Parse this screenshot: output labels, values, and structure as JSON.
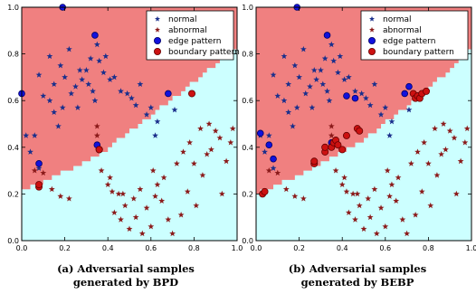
{
  "colors": {
    "region_normal": "#f08080",
    "region_abnormal": "#ccffff",
    "normal": "#1a2f8c",
    "abnormal": "#8b1a1a",
    "edge": "#1111dd",
    "boundary": "#cc1111",
    "boundary_edge": "#660000"
  },
  "chart_data": [
    {
      "type": "scatter",
      "title": "",
      "caption": [
        "(a) Adversarial samples",
        "generated by BPD"
      ],
      "xlim": [
        0,
        1
      ],
      "ylim": [
        0,
        1
      ],
      "xticks": [
        "0.0",
        "0.2",
        "0.4",
        "0.6",
        "0.8",
        "1.0"
      ],
      "yticks": [
        "0.0",
        "0.2",
        "0.4",
        "0.6",
        "0.8",
        "1.0"
      ],
      "grid": false,
      "legend": {
        "placement": "top-right",
        "entries": [
          "normal",
          "abnormal",
          "edge pattern",
          "boundary pattern"
        ]
      },
      "region_boundary": [
        [
          0,
          0.21
        ],
        [
          0.35,
          0.36
        ],
        [
          0.69,
          0.6
        ],
        [
          1.0,
          0.83
        ]
      ],
      "series": [
        {
          "name": "normal",
          "marker": "star",
          "points": [
            [
              0.02,
              0.45
            ],
            [
              0.04,
              0.38
            ],
            [
              0.06,
              0.45
            ],
            [
              0.08,
              0.31
            ],
            [
              0.08,
              0.71
            ],
            [
              0.1,
              0.62
            ],
            [
              0.13,
              0.6
            ],
            [
              0.13,
              0.79
            ],
            [
              0.15,
              0.55
            ],
            [
              0.15,
              0.67
            ],
            [
              0.17,
              0.49
            ],
            [
              0.18,
              0.75
            ],
            [
              0.19,
              0.57
            ],
            [
              0.2,
              0.7
            ],
            [
              0.22,
              0.82
            ],
            [
              0.23,
              0.63
            ],
            [
              0.25,
              0.66
            ],
            [
              0.26,
              0.57
            ],
            [
              0.27,
              0.73
            ],
            [
              0.28,
              0.69
            ],
            [
              0.3,
              0.73
            ],
            [
              0.31,
              0.67
            ],
            [
              0.32,
              0.78
            ],
            [
              0.33,
              0.64
            ],
            [
              0.34,
              0.6
            ],
            [
              0.35,
              0.84
            ],
            [
              0.36,
              0.77
            ],
            [
              0.38,
              0.72
            ],
            [
              0.39,
              0.79
            ],
            [
              0.41,
              0.69
            ],
            [
              0.43,
              0.7
            ],
            [
              0.46,
              0.64
            ],
            [
              0.49,
              0.63
            ],
            [
              0.51,
              0.61
            ],
            [
              0.53,
              0.58
            ],
            [
              0.55,
              0.67
            ],
            [
              0.58,
              0.54
            ],
            [
              0.6,
              0.57
            ],
            [
              0.62,
              0.45
            ],
            [
              0.63,
              0.51
            ],
            [
              0.71,
              0.56
            ]
          ]
        },
        {
          "name": "abnormal",
          "marker": "star",
          "points": [
            [
              0.06,
              0.3
            ],
            [
              0.1,
              0.29
            ],
            [
              0.14,
              0.22
            ],
            [
              0.18,
              0.19
            ],
            [
              0.22,
              0.18
            ],
            [
              0.35,
              0.49
            ],
            [
              0.35,
              0.45
            ],
            [
              0.37,
              0.3
            ],
            [
              0.4,
              0.24
            ],
            [
              0.41,
              0.27
            ],
            [
              0.42,
              0.21
            ],
            [
              0.43,
              0.12
            ],
            [
              0.45,
              0.2
            ],
            [
              0.46,
              0.09
            ],
            [
              0.47,
              0.2
            ],
            [
              0.48,
              0.15
            ],
            [
              0.5,
              0.05
            ],
            [
              0.52,
              0.18
            ],
            [
              0.53,
              0.1
            ],
            [
              0.55,
              0.22
            ],
            [
              0.56,
              0.03
            ],
            [
              0.58,
              0.14
            ],
            [
              0.6,
              0.06
            ],
            [
              0.61,
              0.3
            ],
            [
              0.62,
              0.19
            ],
            [
              0.63,
              0.24
            ],
            [
              0.65,
              0.17
            ],
            [
              0.66,
              0.27
            ],
            [
              0.68,
              0.09
            ],
            [
              0.7,
              0.03
            ],
            [
              0.72,
              0.33
            ],
            [
              0.74,
              0.11
            ],
            [
              0.75,
              0.38
            ],
            [
              0.77,
              0.21
            ],
            [
              0.78,
              0.42
            ],
            [
              0.8,
              0.33
            ],
            [
              0.81,
              0.15
            ],
            [
              0.83,
              0.48
            ],
            [
              0.84,
              0.28
            ],
            [
              0.86,
              0.37
            ],
            [
              0.87,
              0.5
            ],
            [
              0.88,
              0.39
            ],
            [
              0.9,
              0.47
            ],
            [
              0.92,
              0.44
            ],
            [
              0.93,
              0.2
            ],
            [
              0.95,
              0.34
            ],
            [
              0.97,
              0.42
            ],
            [
              0.98,
              0.48
            ]
          ]
        },
        {
          "name": "edge pattern",
          "marker": "circle",
          "points": [
            [
              0.0,
              0.63
            ],
            [
              0.08,
              0.33
            ],
            [
              0.19,
              1.0
            ],
            [
              0.34,
              0.88
            ],
            [
              0.35,
              0.41
            ],
            [
              0.68,
              0.63
            ]
          ]
        },
        {
          "name": "boundary pattern",
          "marker": "circle",
          "points": [
            [
              0.08,
              0.23
            ],
            [
              0.08,
              0.24
            ],
            [
              0.36,
              0.39
            ],
            [
              0.36,
              0.39
            ],
            [
              0.79,
              0.63
            ]
          ]
        }
      ]
    },
    {
      "type": "scatter",
      "title": "",
      "caption": [
        "(b) Adversarial samples",
        "generated by BEBP"
      ],
      "xlim": [
        0,
        1
      ],
      "ylim": [
        0,
        1
      ],
      "xticks": [
        "0.0",
        "0.2",
        "0.4",
        "0.6",
        "0.8",
        "1.0"
      ],
      "yticks": [
        "0.0",
        "0.2",
        "0.4",
        "0.6",
        "0.8",
        "1.0"
      ],
      "grid": false,
      "legend": {
        "placement": "top-right",
        "entries": [
          "normal",
          "abnormal",
          "edge pattern",
          "boundary pattern"
        ]
      },
      "region_boundary": [
        [
          0,
          0.2
        ],
        [
          0.27,
          0.31
        ],
        [
          0.51,
          0.44
        ],
        [
          0.78,
          0.63
        ],
        [
          1.0,
          0.82
        ]
      ],
      "series": [
        {
          "name": "normal",
          "marker": "star",
          "points": [
            [
              0.02,
              0.45
            ],
            [
              0.04,
              0.38
            ],
            [
              0.06,
              0.45
            ],
            [
              0.08,
              0.31
            ],
            [
              0.08,
              0.71
            ],
            [
              0.1,
              0.62
            ],
            [
              0.13,
              0.6
            ],
            [
              0.13,
              0.79
            ],
            [
              0.15,
              0.55
            ],
            [
              0.15,
              0.67
            ],
            [
              0.17,
              0.49
            ],
            [
              0.18,
              0.75
            ],
            [
              0.19,
              0.57
            ],
            [
              0.2,
              0.7
            ],
            [
              0.22,
              0.82
            ],
            [
              0.23,
              0.63
            ],
            [
              0.25,
              0.66
            ],
            [
              0.26,
              0.57
            ],
            [
              0.27,
              0.73
            ],
            [
              0.28,
              0.69
            ],
            [
              0.3,
              0.73
            ],
            [
              0.31,
              0.67
            ],
            [
              0.32,
              0.78
            ],
            [
              0.33,
              0.64
            ],
            [
              0.34,
              0.6
            ],
            [
              0.35,
              0.84
            ],
            [
              0.36,
              0.77
            ],
            [
              0.38,
              0.72
            ],
            [
              0.39,
              0.79
            ],
            [
              0.41,
              0.69
            ],
            [
              0.43,
              0.7
            ],
            [
              0.46,
              0.64
            ],
            [
              0.49,
              0.63
            ],
            [
              0.51,
              0.61
            ],
            [
              0.53,
              0.58
            ],
            [
              0.55,
              0.67
            ],
            [
              0.58,
              0.54
            ],
            [
              0.6,
              0.57
            ],
            [
              0.62,
              0.45
            ],
            [
              0.63,
              0.51
            ],
            [
              0.71,
              0.56
            ]
          ]
        },
        {
          "name": "abnormal",
          "marker": "star",
          "points": [
            [
              0.06,
              0.3
            ],
            [
              0.1,
              0.29
            ],
            [
              0.14,
              0.22
            ],
            [
              0.18,
              0.19
            ],
            [
              0.22,
              0.18
            ],
            [
              0.35,
              0.49
            ],
            [
              0.35,
              0.45
            ],
            [
              0.37,
              0.3
            ],
            [
              0.4,
              0.24
            ],
            [
              0.41,
              0.27
            ],
            [
              0.42,
              0.21
            ],
            [
              0.43,
              0.12
            ],
            [
              0.45,
              0.2
            ],
            [
              0.46,
              0.09
            ],
            [
              0.47,
              0.2
            ],
            [
              0.48,
              0.15
            ],
            [
              0.5,
              0.05
            ],
            [
              0.52,
              0.18
            ],
            [
              0.53,
              0.1
            ],
            [
              0.55,
              0.22
            ],
            [
              0.56,
              0.03
            ],
            [
              0.58,
              0.14
            ],
            [
              0.6,
              0.06
            ],
            [
              0.61,
              0.3
            ],
            [
              0.62,
              0.19
            ],
            [
              0.63,
              0.24
            ],
            [
              0.65,
              0.17
            ],
            [
              0.66,
              0.27
            ],
            [
              0.68,
              0.09
            ],
            [
              0.7,
              0.03
            ],
            [
              0.72,
              0.33
            ],
            [
              0.74,
              0.11
            ],
            [
              0.75,
              0.38
            ],
            [
              0.77,
              0.21
            ],
            [
              0.78,
              0.42
            ],
            [
              0.8,
              0.33
            ],
            [
              0.81,
              0.15
            ],
            [
              0.83,
              0.48
            ],
            [
              0.84,
              0.28
            ],
            [
              0.86,
              0.37
            ],
            [
              0.87,
              0.5
            ],
            [
              0.88,
              0.39
            ],
            [
              0.9,
              0.47
            ],
            [
              0.92,
              0.44
            ],
            [
              0.93,
              0.2
            ],
            [
              0.95,
              0.34
            ],
            [
              0.97,
              0.42
            ],
            [
              0.98,
              0.48
            ]
          ]
        },
        {
          "name": "edge pattern",
          "marker": "circle",
          "points": [
            [
              0.02,
              0.46
            ],
            [
              0.06,
              0.41
            ],
            [
              0.08,
              0.35
            ],
            [
              0.19,
              1.0
            ],
            [
              0.33,
              0.88
            ],
            [
              0.35,
              0.42
            ],
            [
              0.42,
              0.62
            ],
            [
              0.46,
              0.61
            ],
            [
              0.69,
              0.63
            ],
            [
              0.71,
              0.66
            ]
          ]
        },
        {
          "name": "boundary pattern",
          "marker": "circle",
          "points": [
            [
              0.03,
              0.2
            ],
            [
              0.04,
              0.21
            ],
            [
              0.27,
              0.33
            ],
            [
              0.27,
              0.34
            ],
            [
              0.32,
              0.38
            ],
            [
              0.32,
              0.4
            ],
            [
              0.35,
              0.4
            ],
            [
              0.36,
              0.42
            ],
            [
              0.37,
              0.43
            ],
            [
              0.38,
              0.41
            ],
            [
              0.4,
              0.39
            ],
            [
              0.42,
              0.45
            ],
            [
              0.47,
              0.48
            ],
            [
              0.48,
              0.47
            ],
            [
              0.73,
              0.63
            ],
            [
              0.74,
              0.61
            ],
            [
              0.75,
              0.62
            ],
            [
              0.76,
              0.61
            ],
            [
              0.77,
              0.63
            ],
            [
              0.79,
              0.64
            ]
          ]
        }
      ]
    }
  ]
}
